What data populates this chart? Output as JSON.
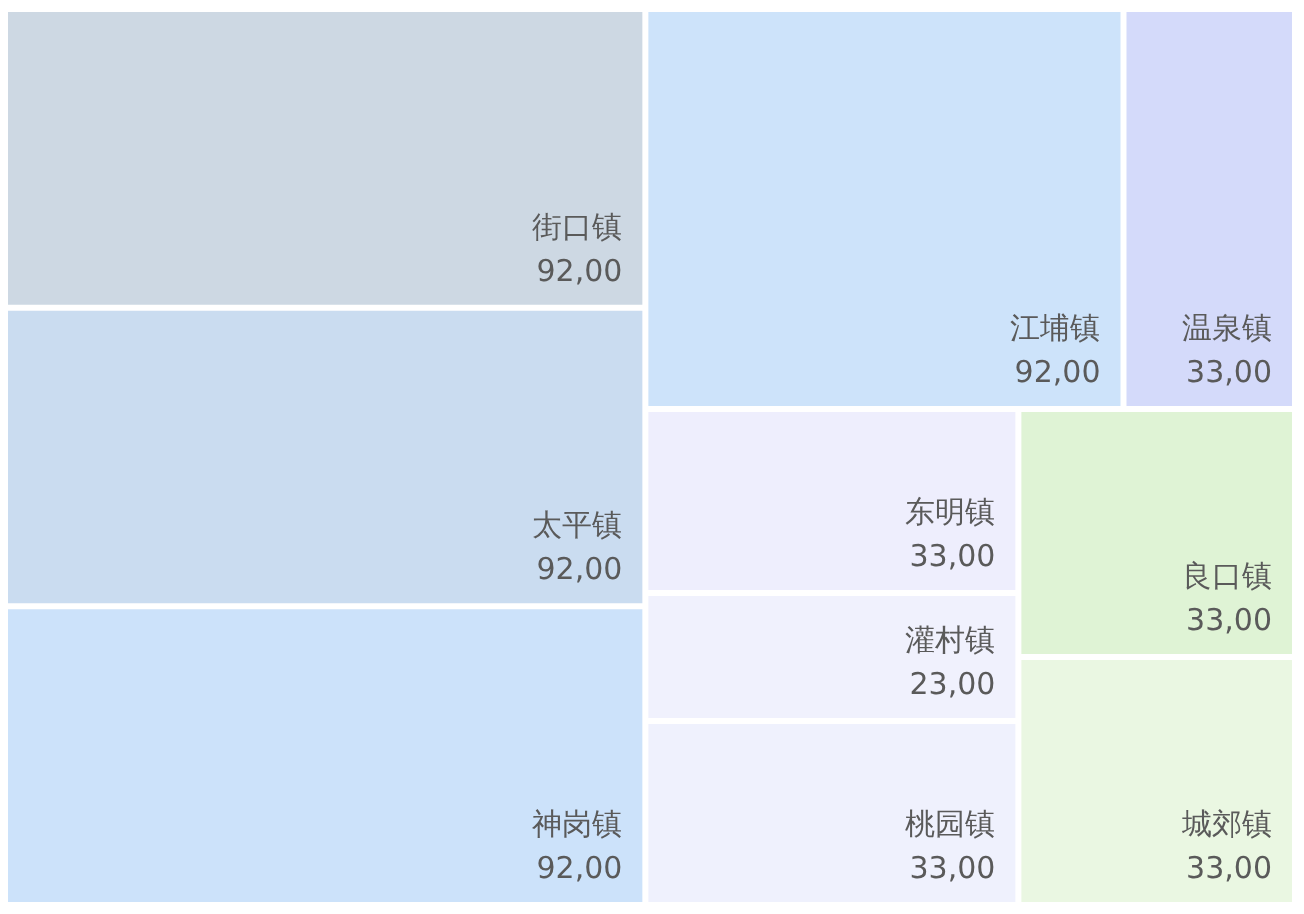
{
  "chart_data": {
    "type": "other",
    "categories": [
      "街口镇",
      "太平镇",
      "神岗镇",
      "江埔镇",
      "温泉镇",
      "东明镇",
      "灌村镇",
      "桃园镇",
      "良口镇",
      "城郊镇"
    ],
    "values": [
      92,
      92,
      92,
      92,
      33,
      33,
      23,
      33,
      33,
      33
    ],
    "value_labels": [
      "92,00",
      "92,00",
      "92,00",
      "92,00",
      "33,00",
      "33,00",
      "23,00",
      "33,00",
      "33,00",
      "33,00"
    ],
    "colors": [
      "#cdd8e3",
      "#cadcf0",
      "#cce2fa",
      "#cde3fa",
      "#d4dafa",
      "#eeeefd",
      "#f0f1fd",
      "#eff1fd",
      "#dff3d5",
      "#eaf7e2"
    ]
  }
}
